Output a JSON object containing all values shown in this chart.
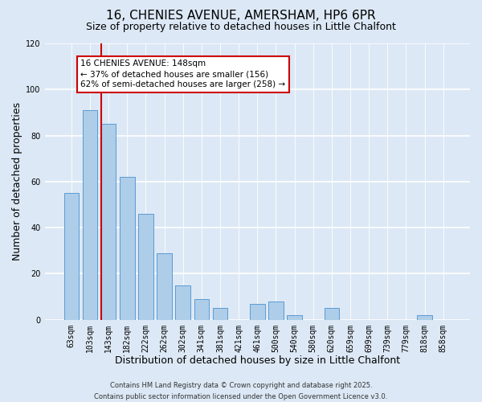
{
  "title_line1": "16, CHENIES AVENUE, AMERSHAM, HP6 6PR",
  "title_line2": "Size of property relative to detached houses in Little Chalfont",
  "xlabel": "Distribution of detached houses by size in Little Chalfont",
  "ylabel": "Number of detached properties",
  "categories": [
    "63sqm",
    "103sqm",
    "143sqm",
    "182sqm",
    "222sqm",
    "262sqm",
    "302sqm",
    "341sqm",
    "381sqm",
    "421sqm",
    "461sqm",
    "500sqm",
    "540sqm",
    "580sqm",
    "620sqm",
    "659sqm",
    "699sqm",
    "739sqm",
    "779sqm",
    "818sqm",
    "858sqm"
  ],
  "values": [
    55,
    91,
    85,
    62,
    46,
    29,
    15,
    9,
    5,
    0,
    7,
    8,
    2,
    0,
    5,
    0,
    0,
    0,
    0,
    2,
    0
  ],
  "bar_color": "#aecde8",
  "bar_edgecolor": "#5b9bd5",
  "vline_bar_index": 2,
  "vline_color": "#cc0000",
  "ylim": [
    0,
    120
  ],
  "yticks": [
    0,
    20,
    40,
    60,
    80,
    100,
    120
  ],
  "annotation_text": "16 CHENIES AVENUE: 148sqm\n← 37% of detached houses are smaller (156)\n62% of semi-detached houses are larger (258) →",
  "annotation_box_edgecolor": "#cc0000",
  "background_color": "#dce8f5",
  "plot_bg_color": "#dce8f5",
  "footer_line1": "Contains HM Land Registry data © Crown copyright and database right 2025.",
  "footer_line2": "Contains public sector information licensed under the Open Government Licence v3.0.",
  "grid_color": "#ffffff",
  "title_fontsize": 11,
  "subtitle_fontsize": 9,
  "tick_fontsize": 7,
  "label_fontsize": 9,
  "footer_fontsize": 6
}
